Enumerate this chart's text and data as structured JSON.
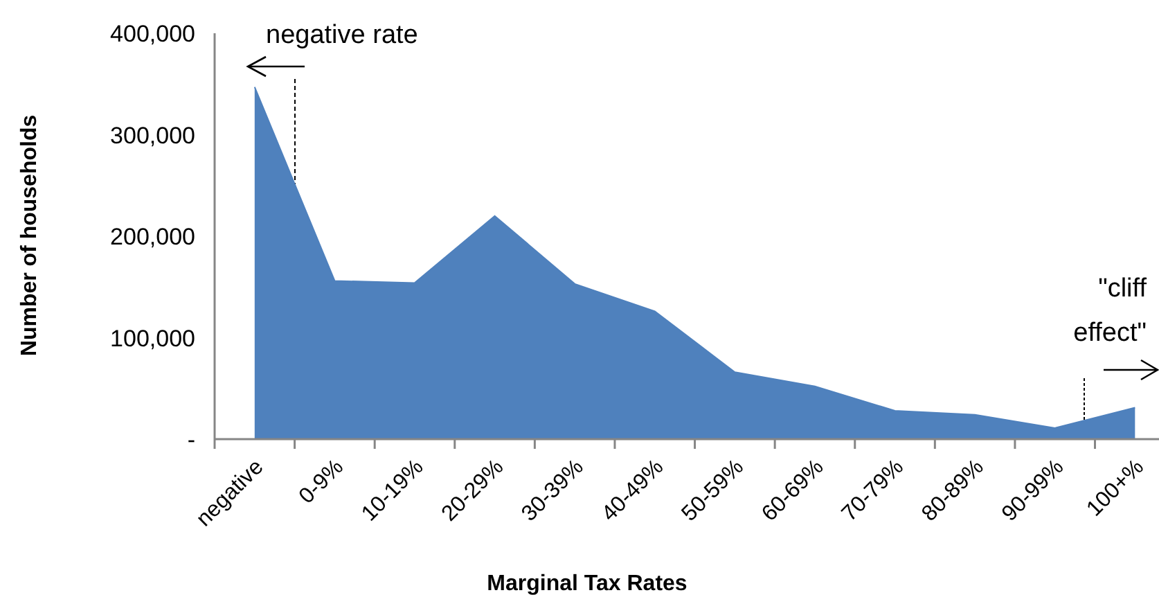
{
  "chart_data": {
    "type": "area",
    "xlabel": "Marginal Tax Rates",
    "ylabel": "Number of households",
    "categories": [
      "negative",
      "0-9%",
      "10-19%",
      "20-29%",
      "30-39%",
      "40-49%",
      "50-59%",
      "60-69%",
      "70-79%",
      "80-89%",
      "90-99%",
      "100+%"
    ],
    "values": [
      347000,
      156000,
      154000,
      220000,
      153000,
      126000,
      66000,
      52000,
      28000,
      24000,
      11000,
      31000
    ],
    "color": "#4f81bd",
    "ylim": [
      0,
      400000
    ],
    "yticks": [
      {
        "value": 0,
        "label": "-"
      },
      {
        "value": 100000,
        "label": "100,000"
      },
      {
        "value": 200000,
        "label": "200,000"
      },
      {
        "value": 300000,
        "label": "300,000"
      },
      {
        "value": 400000,
        "label": "400,000"
      }
    ],
    "annotations": [
      {
        "text": "negative rate"
      },
      {
        "text": "\"cliff effect\""
      }
    ]
  }
}
